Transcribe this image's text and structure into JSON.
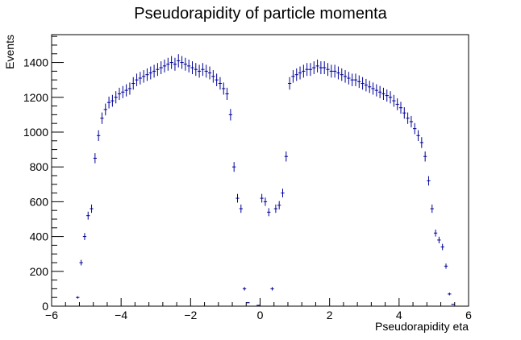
{
  "chart_data": {
    "type": "histogram",
    "title": "Pseudorapidity of particle momenta",
    "xlabel": "Pseudorapidity eta",
    "ylabel": "Events",
    "xlim": [
      -6,
      6
    ],
    "ylim": [
      0,
      1560
    ],
    "x_ticks": [
      -6,
      -4,
      -2,
      0,
      2,
      4,
      6
    ],
    "x_tick_labels": [
      "−6",
      "−4",
      "−2",
      "0",
      "2",
      "4",
      "6"
    ],
    "y_ticks": [
      0,
      200,
      400,
      600,
      800,
      1000,
      1200,
      1400
    ],
    "y_tick_labels": [
      "0",
      "200",
      "400",
      "600",
      "800",
      "1000",
      "1200",
      "1400"
    ],
    "grid": false,
    "series": [
      {
        "color": "#000099",
        "style": "error-bars",
        "bin_width": 0.1,
        "x": [
          -5.35,
          -5.25,
          -5.15,
          -5.05,
          -4.95,
          -4.85,
          -4.75,
          -4.65,
          -4.55,
          -4.45,
          -4.35,
          -4.25,
          -4.15,
          -4.05,
          -3.95,
          -3.85,
          -3.75,
          -3.65,
          -3.55,
          -3.45,
          -3.35,
          -3.25,
          -3.15,
          -3.05,
          -2.95,
          -2.85,
          -2.75,
          -2.65,
          -2.55,
          -2.45,
          -2.35,
          -2.25,
          -2.15,
          -2.05,
          -1.95,
          -1.85,
          -1.75,
          -1.65,
          -1.55,
          -1.45,
          -1.35,
          -1.25,
          -1.15,
          -1.05,
          -0.95,
          -0.85,
          -0.75,
          -0.65,
          -0.55,
          -0.45,
          -0.35,
          -0.25,
          -0.15,
          -0.05,
          0.05,
          0.15,
          0.25,
          0.35,
          0.45,
          0.55,
          0.65,
          0.75,
          0.85,
          0.95,
          1.05,
          1.15,
          1.25,
          1.35,
          1.45,
          1.55,
          1.65,
          1.75,
          1.85,
          1.95,
          2.05,
          2.15,
          2.25,
          2.35,
          2.45,
          2.55,
          2.65,
          2.75,
          2.85,
          2.95,
          3.05,
          3.15,
          3.25,
          3.35,
          3.45,
          3.55,
          3.65,
          3.75,
          3.85,
          3.95,
          4.05,
          4.15,
          4.25,
          4.35,
          4.45,
          4.55,
          4.65,
          4.75,
          4.85,
          4.95,
          5.05,
          5.15,
          5.25,
          5.35,
          5.45,
          5.55,
          5.65
        ],
        "y": [
          0,
          50,
          250,
          400,
          520,
          560,
          850,
          980,
          1080,
          1130,
          1170,
          1180,
          1200,
          1220,
          1230,
          1240,
          1250,
          1280,
          1300,
          1310,
          1320,
          1330,
          1340,
          1350,
          1360,
          1370,
          1380,
          1390,
          1400,
          1390,
          1410,
          1400,
          1390,
          1380,
          1370,
          1360,
          1350,
          1360,
          1350,
          1340,
          1320,
          1300,
          1280,
          1250,
          1220,
          1100,
          800,
          620,
          560,
          100,
          20,
          0,
          0,
          5,
          620,
          600,
          540,
          100,
          560,
          580,
          650,
          860,
          1280,
          1320,
          1330,
          1340,
          1350,
          1360,
          1360,
          1370,
          1380,
          1370,
          1370,
          1360,
          1350,
          1350,
          1340,
          1330,
          1320,
          1310,
          1300,
          1300,
          1290,
          1280,
          1270,
          1260,
          1250,
          1240,
          1230,
          1220,
          1210,
          1200,
          1180,
          1160,
          1140,
          1110,
          1080,
          1060,
          1020,
          980,
          940,
          860,
          720,
          560,
          420,
          380,
          340,
          230,
          70,
          10,
          0
        ],
        "err": [
          0,
          7,
          16,
          20,
          23,
          24,
          29,
          31,
          33,
          34,
          34,
          34,
          35,
          35,
          35,
          35,
          35,
          36,
          36,
          36,
          36,
          36,
          37,
          37,
          37,
          37,
          37,
          37,
          37,
          37,
          38,
          37,
          37,
          37,
          37,
          37,
          37,
          37,
          37,
          37,
          36,
          36,
          36,
          35,
          35,
          33,
          28,
          25,
          24,
          10,
          4,
          0,
          0,
          2,
          25,
          24,
          23,
          10,
          24,
          24,
          25,
          29,
          36,
          36,
          36,
          37,
          37,
          37,
          37,
          37,
          37,
          37,
          37,
          37,
          37,
          37,
          37,
          36,
          36,
          36,
          36,
          36,
          36,
          36,
          36,
          35,
          35,
          35,
          35,
          35,
          35,
          35,
          34,
          34,
          34,
          33,
          33,
          33,
          32,
          31,
          31,
          29,
          27,
          24,
          20,
          19,
          18,
          15,
          8,
          3,
          0
        ]
      }
    ]
  }
}
